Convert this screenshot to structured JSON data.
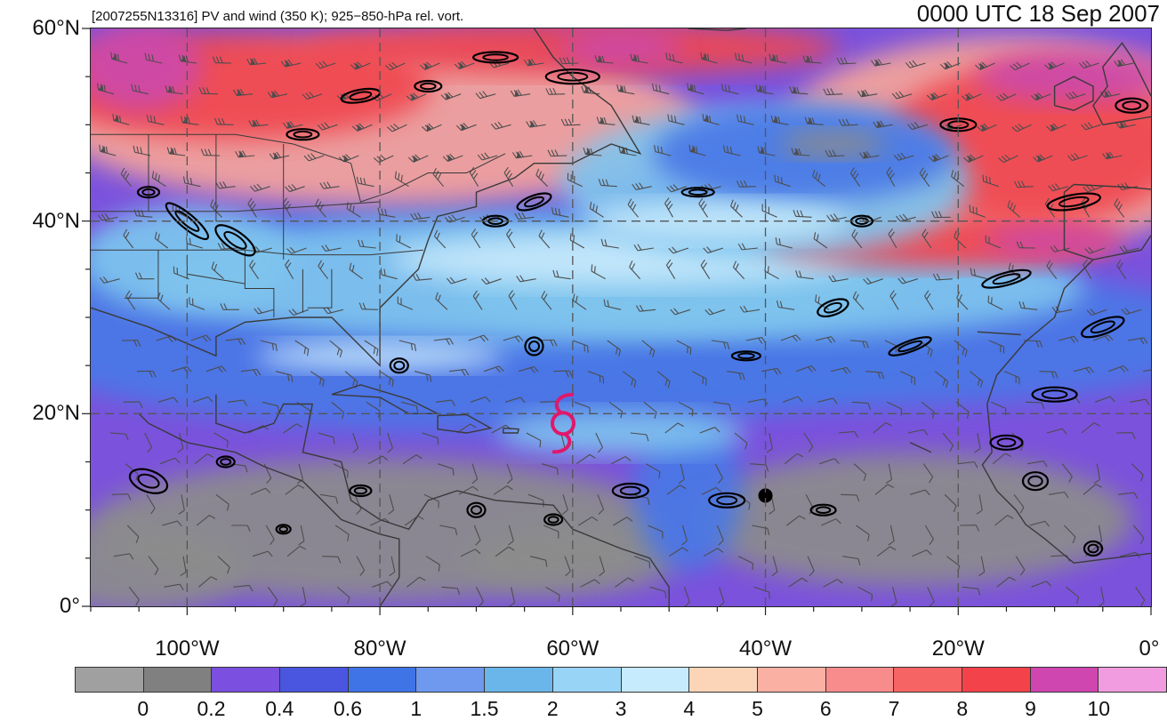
{
  "header": {
    "title_left": "[2007255N13316] PV and wind (350 K); 925−850-hPa rel. vort.",
    "title_right": "0000 UTC 18 Sep 2007"
  },
  "map": {
    "lon_range": [
      -110,
      0
    ],
    "lat_range": [
      0,
      60
    ],
    "lat_ticks": [
      {
        "value": 60,
        "label": "60°N"
      },
      {
        "value": 40,
        "label": "40°N"
      },
      {
        "value": 20,
        "label": "20°N"
      },
      {
        "value": 0,
        "label": "0°"
      }
    ],
    "lon_ticks": [
      {
        "value": -100,
        "label": "100°W"
      },
      {
        "value": -80,
        "label": "80°W"
      },
      {
        "value": -60,
        "label": "60°W"
      },
      {
        "value": -40,
        "label": "40°W"
      },
      {
        "value": -20,
        "label": "20°W"
      },
      {
        "value": 0,
        "label": "0°"
      }
    ],
    "storm_marker": {
      "lon": -61,
      "lat": 19,
      "color": "#e0186c"
    },
    "field_colors": {
      "background_low": "#8c8c8c",
      "purple": "#7b52dc",
      "blue": "#4a78e6",
      "light_blue": "#7fc4ee",
      "pale_blue": "#c6e8fb",
      "salmon": "#f5a59a",
      "red": "#f0474f",
      "magenta": "#cc49aa"
    }
  },
  "colorbar": {
    "colors": [
      "#a0a0a0",
      "#808080",
      "#7b4fe0",
      "#4a55e0",
      "#3f74e6",
      "#6f99ee",
      "#6ab6ea",
      "#98d4f5",
      "#c6ebfc",
      "#fcd5b8",
      "#fbb0a4",
      "#f88c8c",
      "#f76464",
      "#f3424a",
      "#cf46b0",
      "#f19ce0"
    ],
    "labels": [
      "0",
      "0.2",
      "0.4",
      "0.6",
      "1",
      "1.5",
      "2",
      "3",
      "4",
      "5",
      "6",
      "7",
      "8",
      "9",
      "10"
    ]
  }
}
